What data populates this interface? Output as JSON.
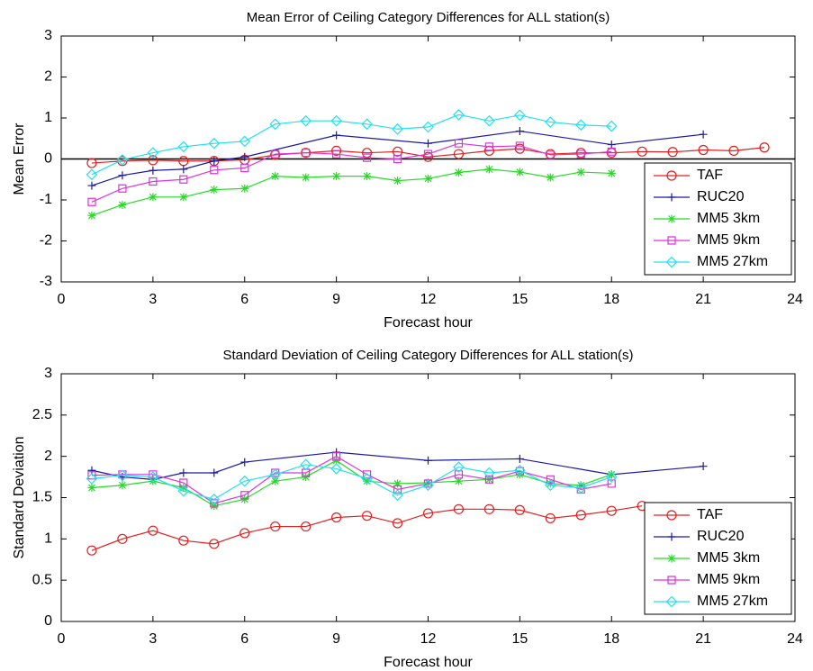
{
  "chart_data": [
    {
      "type": "line",
      "title": "Mean Error of Ceiling Category Differences for ALL station(s)",
      "xlabel": "Forecast hour",
      "ylabel": "Mean Error",
      "xlim": [
        0,
        24
      ],
      "xticks": [
        0,
        3,
        6,
        9,
        12,
        15,
        18,
        21,
        24
      ],
      "ylim": [
        -3,
        3
      ],
      "yticks": [
        -3,
        -2,
        -1,
        0,
        1,
        2,
        3
      ],
      "zero_line": true,
      "legend": "lower right",
      "series": [
        {
          "name": "TAF",
          "color": "#e02020",
          "marker": "circle",
          "x": [
            1,
            2,
            3,
            4,
            5,
            6,
            7,
            8,
            9,
            10,
            11,
            12,
            13,
            14,
            15,
            16,
            17,
            18,
            19,
            20,
            21,
            22,
            23
          ],
          "values": [
            -0.1,
            -0.05,
            -0.03,
            -0.05,
            -0.05,
            -0.02,
            0.1,
            0.15,
            0.2,
            0.15,
            0.18,
            0.05,
            0.12,
            0.2,
            0.25,
            0.12,
            0.15,
            0.15,
            0.18,
            0.17,
            0.22,
            0.2,
            0.28
          ]
        },
        {
          "name": "RUC20",
          "color": "#1a1aa6",
          "marker": "plus",
          "x": [
            1,
            2,
            3,
            4,
            5,
            6,
            9,
            12,
            15,
            18,
            21
          ],
          "values": [
            -0.65,
            -0.4,
            -0.28,
            -0.25,
            -0.05,
            0.05,
            0.58,
            0.38,
            0.68,
            0.35,
            0.6
          ]
        },
        {
          "name": "MM5 3km",
          "color": "#22dd22",
          "marker": "asterisk",
          "x": [
            1,
            2,
            3,
            4,
            5,
            6,
            7,
            8,
            9,
            10,
            11,
            12,
            13,
            14,
            15,
            16,
            17,
            18
          ],
          "values": [
            -1.38,
            -1.12,
            -0.93,
            -0.93,
            -0.75,
            -0.72,
            -0.42,
            -0.45,
            -0.42,
            -0.42,
            -0.53,
            -0.48,
            -0.33,
            -0.25,
            -0.32,
            -0.45,
            -0.32,
            -0.35
          ]
        },
        {
          "name": "MM5 9km",
          "color": "#dd33dd",
          "marker": "square",
          "x": [
            1,
            2,
            3,
            4,
            5,
            6,
            7,
            8,
            9,
            10,
            11,
            12,
            13,
            14,
            15,
            16,
            17,
            18
          ],
          "values": [
            -1.05,
            -0.72,
            -0.55,
            -0.5,
            -0.27,
            -0.22,
            0.12,
            0.15,
            0.12,
            0.03,
            0.0,
            0.12,
            0.38,
            0.3,
            0.32,
            0.1,
            0.12,
            0.18
          ]
        },
        {
          "name": "MM5 27km",
          "color": "#22e0ee",
          "marker": "diamond",
          "x": [
            1,
            2,
            3,
            4,
            5,
            6,
            7,
            8,
            9,
            10,
            11,
            12,
            13,
            14,
            15,
            16,
            17,
            18
          ],
          "values": [
            -0.38,
            -0.02,
            0.15,
            0.3,
            0.38,
            0.43,
            0.85,
            0.93,
            0.93,
            0.85,
            0.73,
            0.78,
            1.08,
            0.93,
            1.07,
            0.9,
            0.83,
            0.8
          ]
        }
      ]
    },
    {
      "type": "line",
      "title": "Standard Deviation of Ceiling Category Differences for ALL station(s)",
      "xlabel": "Forecast hour",
      "ylabel": "Standard Deviation",
      "xlim": [
        0,
        24
      ],
      "xticks": [
        0,
        3,
        6,
        9,
        12,
        15,
        18,
        21,
        24
      ],
      "ylim": [
        0,
        3
      ],
      "yticks": [
        0,
        0.5,
        1,
        1.5,
        2,
        2.5,
        3
      ],
      "zero_line": false,
      "legend": "lower right",
      "series": [
        {
          "name": "TAF",
          "color": "#e02020",
          "marker": "circle",
          "x": [
            1,
            2,
            3,
            4,
            5,
            6,
            7,
            8,
            9,
            10,
            11,
            12,
            13,
            14,
            15,
            16,
            17,
            18,
            19
          ],
          "values": [
            0.86,
            1.0,
            1.1,
            0.98,
            0.94,
            1.07,
            1.15,
            1.15,
            1.26,
            1.28,
            1.19,
            1.31,
            1.36,
            1.36,
            1.35,
            1.25,
            1.29,
            1.34,
            1.4
          ]
        },
        {
          "name": "RUC20",
          "color": "#1a1aa6",
          "marker": "plus",
          "x": [
            1,
            2,
            3,
            4,
            5,
            6,
            9,
            12,
            15,
            18,
            21
          ],
          "values": [
            1.83,
            1.75,
            1.72,
            1.8,
            1.8,
            1.93,
            2.05,
            1.95,
            1.97,
            1.78,
            1.88
          ]
        },
        {
          "name": "MM5 3km",
          "color": "#22dd22",
          "marker": "asterisk",
          "x": [
            1,
            2,
            3,
            4,
            5,
            6,
            7,
            8,
            9,
            10,
            11,
            12,
            13,
            14,
            15,
            16,
            17,
            18
          ],
          "values": [
            1.62,
            1.65,
            1.7,
            1.62,
            1.4,
            1.48,
            1.7,
            1.75,
            1.95,
            1.7,
            1.67,
            1.68,
            1.7,
            1.72,
            1.78,
            1.67,
            1.65,
            1.78
          ]
        },
        {
          "name": "MM5 9km",
          "color": "#dd33dd",
          "marker": "square",
          "x": [
            1,
            2,
            3,
            4,
            5,
            6,
            7,
            8,
            9,
            10,
            11,
            12,
            13,
            14,
            15,
            16,
            17,
            18
          ],
          "values": [
            1.77,
            1.78,
            1.78,
            1.68,
            1.43,
            1.53,
            1.8,
            1.8,
            2.0,
            1.78,
            1.6,
            1.67,
            1.78,
            1.72,
            1.82,
            1.72,
            1.6,
            1.67
          ]
        },
        {
          "name": "MM5 27km",
          "color": "#22e0ee",
          "marker": "diamond",
          "x": [
            1,
            2,
            3,
            4,
            5,
            6,
            7,
            8,
            9,
            10,
            11,
            12,
            13,
            14,
            15,
            16,
            17,
            18
          ],
          "values": [
            1.73,
            1.77,
            1.75,
            1.58,
            1.48,
            1.7,
            1.78,
            1.9,
            1.85,
            1.73,
            1.53,
            1.65,
            1.87,
            1.8,
            1.83,
            1.65,
            1.62,
            1.75
          ]
        }
      ]
    }
  ]
}
